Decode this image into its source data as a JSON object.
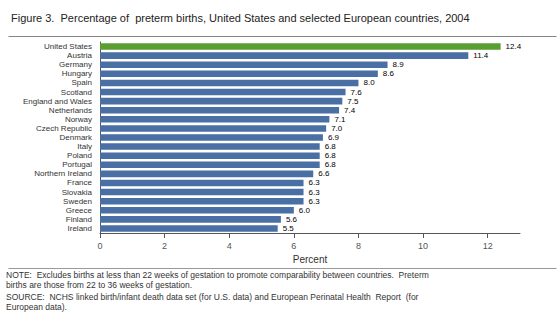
{
  "chart_data": {
    "type": "bar",
    "orientation": "horizontal",
    "title": "Figure 3.  Percentage of  preterm births, United States and selected European countries, 2004",
    "xlabel": "Percent",
    "categories": [
      "United States",
      "Austria",
      "Germany",
      "Hungary",
      "Spain",
      "Scotland",
      "England and Wales",
      "Netherlands",
      "Norway",
      "Czech Republic",
      "Denmark",
      "Italy",
      "Poland",
      "Portugal",
      "Northern Ireland",
      "France",
      "Slovakia",
      "Sweden",
      "Greece",
      "Finland",
      "Ireland"
    ],
    "values": [
      12.4,
      11.4,
      8.9,
      8.6,
      8.0,
      7.6,
      7.5,
      7.4,
      7.1,
      7.0,
      6.9,
      6.8,
      6.8,
      6.8,
      6.6,
      6.3,
      6.3,
      6.3,
      6.0,
      5.6,
      5.5
    ],
    "value_labels": [
      "12.4",
      "11.4",
      "8.9",
      "8.6",
      "8.0",
      "7.6",
      "7.5",
      "7.4",
      "7.1",
      "7.0",
      "6.9",
      "6.8",
      "6.8",
      "6.8",
      "6.6",
      "6.3",
      "6.3",
      "6.3",
      "6.0",
      "5.6",
      "5.5"
    ],
    "colors": [
      "#5a9e32",
      "#4a6fa5",
      "#4a6fa5",
      "#4a6fa5",
      "#4a6fa5",
      "#4a6fa5",
      "#4a6fa5",
      "#4a6fa5",
      "#4a6fa5",
      "#4a6fa5",
      "#4a6fa5",
      "#4a6fa5",
      "#4a6fa5",
      "#4a6fa5",
      "#4a6fa5",
      "#4a6fa5",
      "#4a6fa5",
      "#4a6fa5",
      "#4a6fa5",
      "#4a6fa5",
      "#4a6fa5"
    ],
    "xlim": [
      0,
      13
    ],
    "xticks": [
      0,
      2,
      4,
      6,
      8,
      10,
      12
    ],
    "grid": false,
    "data_labels": true,
    "annotations": [
      "NOTE:  Excludes births at less than 22 weeks of gestation to promote comparability between countries.  Preterm births are those from 22 to 36 weeks of gestation.",
      "SOURCE:  NCHS linked birth/infant death data set (for U.S. data) and European Perinatal Health  Report  (for European data)."
    ]
  }
}
